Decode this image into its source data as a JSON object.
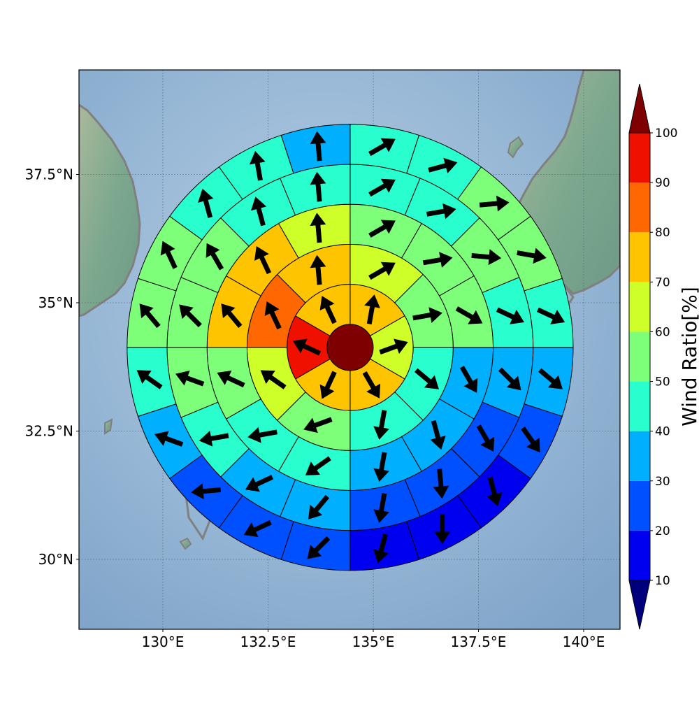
{
  "chart_data": {
    "type": "heatmap",
    "subtype": "polar wind-ratio map with direction arrows",
    "title": "",
    "xlabel": "",
    "ylabel": "",
    "x_ticks": [
      "130°E",
      "132.5°E",
      "135°E",
      "137.5°E",
      "140°E"
    ],
    "x_tick_values": [
      130,
      132.5,
      135,
      137.5,
      140
    ],
    "y_ticks": [
      "30°N",
      "32.5°N",
      "35°N",
      "37.5°N"
    ],
    "y_tick_values": [
      30,
      32.5,
      35,
      37.5
    ],
    "xlim": [
      128.0,
      140.9
    ],
    "ylim": [
      28.5,
      39.55
    ],
    "grid": true,
    "center": {
      "lon": 134.45,
      "lat": 34.13
    },
    "rings_degrees": [
      0.55,
      1.5,
      2.45,
      3.4,
      4.35,
      5.3
    ],
    "sectors_per_ring": [
      1,
      6,
      8,
      12,
      16,
      20
    ],
    "sector_offset_deg": [
      0,
      0,
      0,
      0,
      0,
      0
    ],
    "ratios": [
      [
        100
      ],
      [
        70,
        60,
        70,
        70,
        90,
        70
      ],
      [
        60,
        50,
        40,
        40,
        50,
        60,
        80,
        70
      ],
      [
        50,
        50,
        50,
        30,
        30,
        30,
        40,
        40,
        50,
        70,
        70,
        60
      ],
      [
        40,
        40,
        50,
        40,
        30,
        20,
        20,
        20,
        30,
        30,
        40,
        50,
        50,
        50,
        40,
        40
      ],
      [
        40,
        40,
        50,
        50,
        40,
        30,
        20,
        10,
        10,
        10,
        20,
        20,
        20,
        30,
        40,
        50,
        50,
        40,
        40,
        30
      ]
    ],
    "arrow_bearings": [
      null,
      [
        10,
        70,
        150,
        205,
        295,
        335
      ],
      [
        60,
        80,
        130,
        190,
        250,
        305,
        335,
        355
      ],
      [
        60,
        80,
        120,
        150,
        165,
        190,
        235,
        260,
        295,
        320,
        335,
        355
      ],
      [
        60,
        80,
        95,
        115,
        135,
        150,
        175,
        190,
        220,
        245,
        260,
        290,
        315,
        330,
        345,
        355
      ],
      [
        60,
        75,
        85,
        100,
        115,
        130,
        145,
        165,
        180,
        195,
        225,
        245,
        265,
        290,
        305,
        320,
        335,
        345,
        350,
        355
      ]
    ],
    "colorbar": {
      "label": "Wind Ratio[%]",
      "ticks": [
        "10",
        "20",
        "30",
        "40",
        "50",
        "60",
        "70",
        "80",
        "90",
        "100"
      ],
      "tick_values": [
        10,
        20,
        30,
        40,
        50,
        60,
        70,
        80,
        90,
        100
      ],
      "levels": [
        {
          "from": 10,
          "to": 20,
          "color": "#0000f0"
        },
        {
          "from": 20,
          "to": 30,
          "color": "#0050ff"
        },
        {
          "from": 30,
          "to": 40,
          "color": "#00b0ff"
        },
        {
          "from": 40,
          "to": 50,
          "color": "#29ffce"
        },
        {
          "from": 50,
          "to": 60,
          "color": "#7dff7a"
        },
        {
          "from": 60,
          "to": 70,
          "color": "#ceff29"
        },
        {
          "from": 70,
          "to": 80,
          "color": "#ffc400"
        },
        {
          "from": 80,
          "to": 90,
          "color": "#ff6800"
        },
        {
          "from": 90,
          "to": 100,
          "color": "#f01000"
        }
      ],
      "under_color": "#00007f",
      "over_color": "#7f0000",
      "extend": "both"
    },
    "basemap": {
      "sea_color": "#9dbcd8",
      "land_color": "#7aa890",
      "coastline_color": "#808080"
    }
  }
}
